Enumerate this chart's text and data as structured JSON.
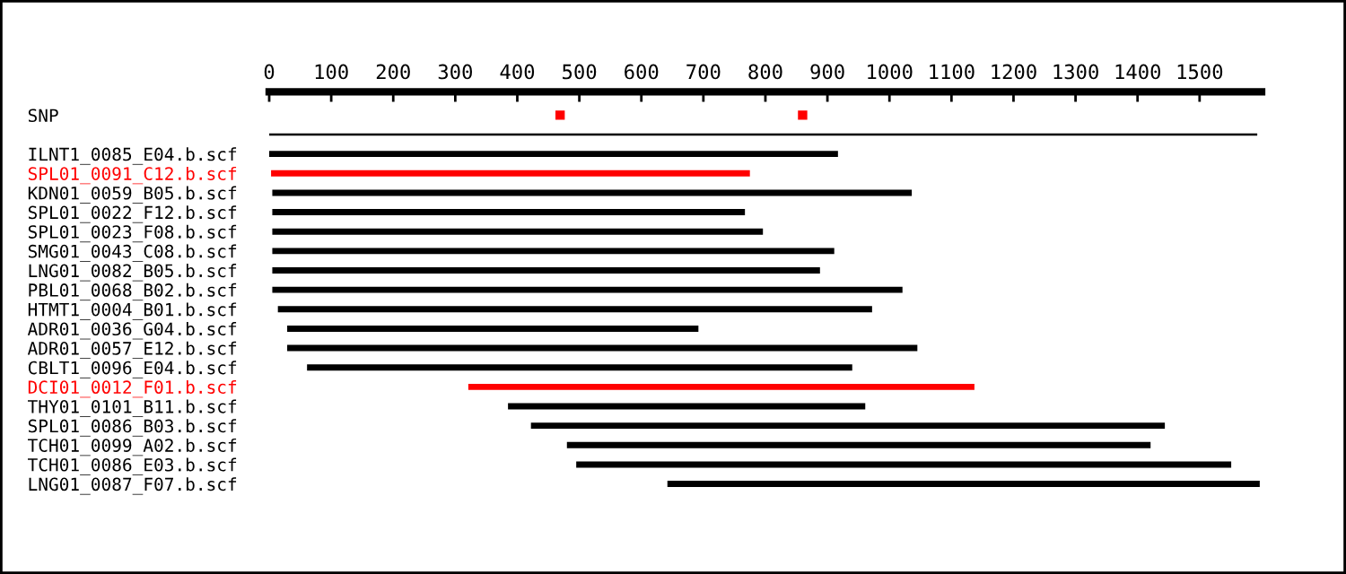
{
  "chart_data": {
    "type": "bar",
    "orientation": "horizontal",
    "categories": [
      "SNP",
      null,
      "ILNT1_0085_E04.b.scf",
      "SPL01_0091_C12.b.scf",
      "KDN01_0059_B05.b.scf",
      "SPL01_0022_F12.b.scf",
      "SPL01_0023_F08.b.scf",
      "SMG01_0043_C08.b.scf",
      "LNG01_0082_B05.b.scf",
      "PBL01_0068_B02.b.scf",
      "HTMT1_0004_B01.b.scf",
      "ADR01_0036_G04.b.scf",
      "ADR01_0057_E12.b.scf",
      "CBLT1_0096_E04.b.scf",
      "DCI01_0012_F01.b.scf",
      "THY01_0101_B11.b.scf",
      "SPL01_0086_B03.b.scf",
      "TCH01_0099_A02.b.scf",
      "TCH01_0086_E03.b.scf",
      "LNG01_0087_F07.b.scf"
    ],
    "series": [
      {
        "values": [
          null,
          1593,
          917,
          772,
          1031,
          762,
          791,
          906,
          883,
          1016,
          958,
          663,
          1016,
          879,
          816,
          576,
          1022,
          941,
          1056,
          955
        ],
        "base": [
          null,
          0,
          0,
          3,
          5,
          5,
          5,
          5,
          5,
          5,
          14,
          29,
          29,
          61,
          321,
          385,
          422,
          480,
          495,
          642
        ],
        "colors": [
          "#000000",
          "#000000",
          "#000000",
          "#ff0000",
          "#000000",
          "#000000",
          "#000000",
          "#000000",
          "#000000",
          "#000000",
          "#000000",
          "#000000",
          "#000000",
          "#000000",
          "#ff0000",
          "#000000",
          "#000000",
          "#000000",
          "#000000",
          "#000000"
        ]
      },
      {
        "type": "scatter",
        "x": [
          "SNP",
          "SNP"
        ],
        "values": [
          469,
          860
        ],
        "color": "#ff0000",
        "marker": "square"
      }
    ],
    "xlim": [
      0,
      1600
    ],
    "xticks": [
      0,
      100,
      200,
      300,
      400,
      500,
      600,
      700,
      800,
      900,
      1000,
      1100,
      1200,
      1300,
      1400,
      1500
    ],
    "grid": false,
    "legend": false
  }
}
